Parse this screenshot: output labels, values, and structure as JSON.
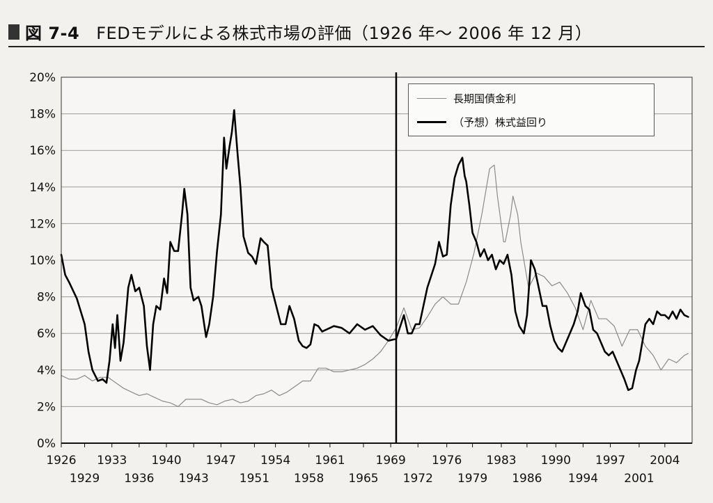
{
  "header": {
    "figure_number": "図 7-4",
    "title": "FEDモデルによる株式市場の評価（1926 年～ 2006 年 12 月）"
  },
  "legend": {
    "items": [
      {
        "label": "長期国債金利",
        "color": "#8a8a8a",
        "style": "thin"
      },
      {
        "label": "（予想）株式益回り",
        "color": "#000000",
        "style": "thick"
      }
    ]
  },
  "chart_data": {
    "type": "line",
    "title": "FEDモデルによる株式市場の評価（1926 年～ 2006 年 12 月）",
    "ylim": [
      0,
      20
    ],
    "xlim": [
      1926,
      2007
    ],
    "y_ticks": [
      "0%",
      "2%",
      "4%",
      "6%",
      "8%",
      "10%",
      "12%",
      "14%",
      "16%",
      "18%",
      "20%"
    ],
    "x_ticks_upper": [
      "1926",
      "1933",
      "1940",
      "1947",
      "1954",
      "1961",
      "1969",
      "1976",
      "1983",
      "1990",
      "1997",
      "2004"
    ],
    "x_ticks_lower": [
      "1929",
      "1936",
      "1943",
      "1951",
      "1958",
      "1965",
      "1972",
      "1979",
      "1986",
      "1994",
      "2001"
    ],
    "x_ticks_upper_values": [
      1926,
      1932.5,
      1939.5,
      1946.5,
      1953.5,
      1960.5,
      1968.3,
      1975.5,
      1982.5,
      1989.5,
      1996.5,
      2003.5
    ],
    "x_ticks_lower_values": [
      1929,
      1936,
      1943,
      1950.8,
      1957.8,
      1964.8,
      1971.8,
      1978.8,
      1985.8,
      1993,
      2000.2
    ],
    "vertical_marker_year": 1969,
    "grid": true,
    "legend_position": "top-right",
    "series": [
      {
        "name": "長期国債金利",
        "color": "#8a8a8a",
        "width": 1.2,
        "points": [
          [
            1926,
            3.7
          ],
          [
            1927,
            3.5
          ],
          [
            1928,
            3.5
          ],
          [
            1929,
            3.7
          ],
          [
            1930,
            3.4
          ],
          [
            1931,
            3.6
          ],
          [
            1932,
            3.6
          ],
          [
            1933,
            3.3
          ],
          [
            1934,
            3.0
          ],
          [
            1935,
            2.8
          ],
          [
            1936,
            2.6
          ],
          [
            1937,
            2.7
          ],
          [
            1938,
            2.5
          ],
          [
            1939,
            2.3
          ],
          [
            1940,
            2.2
          ],
          [
            1941,
            2.0
          ],
          [
            1942,
            2.4
          ],
          [
            1943,
            2.4
          ],
          [
            1944,
            2.4
          ],
          [
            1945,
            2.2
          ],
          [
            1946,
            2.1
          ],
          [
            1947,
            2.3
          ],
          [
            1948,
            2.4
          ],
          [
            1949,
            2.2
          ],
          [
            1950,
            2.3
          ],
          [
            1951,
            2.6
          ],
          [
            1952,
            2.7
          ],
          [
            1953,
            2.9
          ],
          [
            1954,
            2.6
          ],
          [
            1955,
            2.8
          ],
          [
            1956,
            3.1
          ],
          [
            1957,
            3.4
          ],
          [
            1958,
            3.4
          ],
          [
            1959,
            4.1
          ],
          [
            1960,
            4.1
          ],
          [
            1961,
            3.9
          ],
          [
            1962,
            3.9
          ],
          [
            1963,
            4.0
          ],
          [
            1964,
            4.1
          ],
          [
            1965,
            4.3
          ],
          [
            1966,
            4.6
          ],
          [
            1967,
            5.0
          ],
          [
            1968,
            5.6
          ],
          [
            1969,
            6.3
          ],
          [
            1970,
            7.4
          ],
          [
            1971,
            6.2
          ],
          [
            1972,
            6.3
          ],
          [
            1973,
            6.9
          ],
          [
            1974,
            7.6
          ],
          [
            1975,
            8.0
          ],
          [
            1976,
            7.6
          ],
          [
            1977,
            7.6
          ],
          [
            1978,
            8.8
          ],
          [
            1979,
            10.4
          ],
          [
            1980,
            12.5
          ],
          [
            1981,
            15.0
          ],
          [
            1981.6,
            15.2
          ],
          [
            1982,
            13.5
          ],
          [
            1982.8,
            11.0
          ],
          [
            1983,
            11.0
          ],
          [
            1983.7,
            12.5
          ],
          [
            1984,
            13.5
          ],
          [
            1984.6,
            12.5
          ],
          [
            1985,
            11.0
          ],
          [
            1986,
            8.5
          ],
          [
            1987,
            9.3
          ],
          [
            1988,
            9.1
          ],
          [
            1989,
            8.6
          ],
          [
            1990,
            8.8
          ],
          [
            1991,
            8.2
          ],
          [
            1992,
            7.4
          ],
          [
            1993,
            6.2
          ],
          [
            1994,
            7.8
          ],
          [
            1995,
            6.8
          ],
          [
            1996,
            6.8
          ],
          [
            1997,
            6.4
          ],
          [
            1998,
            5.3
          ],
          [
            1999,
            6.2
          ],
          [
            2000,
            6.2
          ],
          [
            2001,
            5.3
          ],
          [
            2002,
            4.8
          ],
          [
            2003,
            4.0
          ],
          [
            2004,
            4.6
          ],
          [
            2005,
            4.4
          ],
          [
            2006,
            4.8
          ],
          [
            2006.5,
            4.9
          ]
        ]
      },
      {
        "name": "（予想）株式益回り",
        "color": "#000000",
        "width": 2.6,
        "points": [
          [
            1926,
            10.3
          ],
          [
            1926.5,
            9.2
          ],
          [
            1927,
            8.8
          ],
          [
            1928,
            7.9
          ],
          [
            1929,
            6.5
          ],
          [
            1929.5,
            5.0
          ],
          [
            1930,
            4.0
          ],
          [
            1930.7,
            3.4
          ],
          [
            1931.3,
            3.5
          ],
          [
            1931.8,
            3.3
          ],
          [
            1932.2,
            4.5
          ],
          [
            1932.6,
            6.5
          ],
          [
            1932.9,
            5.2
          ],
          [
            1933.2,
            7.0
          ],
          [
            1933.6,
            4.5
          ],
          [
            1934,
            5.5
          ],
          [
            1934.6,
            8.5
          ],
          [
            1935,
            9.2
          ],
          [
            1935.5,
            8.3
          ],
          [
            1936,
            8.5
          ],
          [
            1936.6,
            7.5
          ],
          [
            1937,
            5.3
          ],
          [
            1937.4,
            4.0
          ],
          [
            1937.8,
            6.5
          ],
          [
            1938.2,
            7.5
          ],
          [
            1938.7,
            7.3
          ],
          [
            1939.2,
            9.0
          ],
          [
            1939.6,
            8.2
          ],
          [
            1940,
            11.0
          ],
          [
            1940.5,
            10.5
          ],
          [
            1941,
            10.5
          ],
          [
            1941.5,
            12.5
          ],
          [
            1941.8,
            13.9
          ],
          [
            1942.2,
            12.5
          ],
          [
            1942.6,
            8.5
          ],
          [
            1943,
            7.8
          ],
          [
            1943.6,
            8.0
          ],
          [
            1944,
            7.5
          ],
          [
            1944.6,
            5.8
          ],
          [
            1945,
            6.5
          ],
          [
            1945.5,
            8.0
          ],
          [
            1946,
            10.5
          ],
          [
            1946.5,
            12.5
          ],
          [
            1946.9,
            16.7
          ],
          [
            1947.2,
            15.0
          ],
          [
            1947.6,
            16.2
          ],
          [
            1947.9,
            17.0
          ],
          [
            1948.2,
            18.2
          ],
          [
            1948.6,
            16.0
          ],
          [
            1949,
            14.0
          ],
          [
            1949.4,
            11.3
          ],
          [
            1950,
            10.4
          ],
          [
            1950.5,
            10.2
          ],
          [
            1951,
            9.8
          ],
          [
            1951.6,
            11.2
          ],
          [
            1952,
            11.0
          ],
          [
            1952.5,
            10.8
          ],
          [
            1953,
            8.5
          ],
          [
            1953.6,
            7.5
          ],
          [
            1954.2,
            6.5
          ],
          [
            1954.8,
            6.5
          ],
          [
            1955.3,
            7.5
          ],
          [
            1955.9,
            6.8
          ],
          [
            1956.5,
            5.6
          ],
          [
            1957,
            5.3
          ],
          [
            1957.5,
            5.2
          ],
          [
            1958,
            5.4
          ],
          [
            1958.5,
            6.5
          ],
          [
            1959,
            6.4
          ],
          [
            1959.5,
            6.1
          ],
          [
            1960,
            6.2
          ],
          [
            1961,
            6.4
          ],
          [
            1962,
            6.3
          ],
          [
            1963,
            6.0
          ],
          [
            1964,
            6.5
          ],
          [
            1965,
            6.2
          ],
          [
            1966,
            6.4
          ],
          [
            1967,
            5.9
          ],
          [
            1968,
            5.6
          ],
          [
            1969,
            5.7
          ],
          [
            1970,
            7.0
          ],
          [
            1970.5,
            6.0
          ],
          [
            1971,
            6.0
          ],
          [
            1971.5,
            6.5
          ],
          [
            1972,
            6.5
          ],
          [
            1973,
            8.5
          ],
          [
            1974,
            9.8
          ],
          [
            1974.5,
            11.0
          ],
          [
            1975,
            10.2
          ],
          [
            1975.5,
            10.3
          ],
          [
            1976,
            13.0
          ],
          [
            1976.5,
            14.5
          ],
          [
            1977,
            15.2
          ],
          [
            1977.5,
            15.6
          ],
          [
            1977.8,
            14.6
          ],
          [
            1978,
            14.3
          ],
          [
            1978.4,
            13.0
          ],
          [
            1978.8,
            11.5
          ],
          [
            1979.3,
            11.0
          ],
          [
            1979.8,
            10.2
          ],
          [
            1980.3,
            10.6
          ],
          [
            1980.8,
            10.0
          ],
          [
            1981.3,
            10.3
          ],
          [
            1981.8,
            9.5
          ],
          [
            1982.3,
            10.0
          ],
          [
            1982.8,
            9.8
          ],
          [
            1983.3,
            10.3
          ],
          [
            1983.8,
            9.2
          ],
          [
            1984.3,
            7.2
          ],
          [
            1984.8,
            6.4
          ],
          [
            1985.4,
            6.0
          ],
          [
            1985.8,
            7.0
          ],
          [
            1986.3,
            10.0
          ],
          [
            1986.8,
            9.5
          ],
          [
            1987.3,
            8.5
          ],
          [
            1987.8,
            7.5
          ],
          [
            1988.3,
            7.5
          ],
          [
            1988.8,
            6.4
          ],
          [
            1989.3,
            5.6
          ],
          [
            1989.8,
            5.2
          ],
          [
            1990.3,
            5.0
          ],
          [
            1990.8,
            5.5
          ],
          [
            1991.3,
            6.0
          ],
          [
            1991.8,
            6.5
          ],
          [
            1992.3,
            7.2
          ],
          [
            1992.7,
            8.2
          ],
          [
            1993.3,
            7.5
          ],
          [
            1993.8,
            7.3
          ],
          [
            1994.3,
            6.2
          ],
          [
            1994.8,
            6.0
          ],
          [
            1995.3,
            5.5
          ],
          [
            1995.8,
            5.0
          ],
          [
            1996.3,
            4.8
          ],
          [
            1996.8,
            5.0
          ],
          [
            1997.3,
            4.5
          ],
          [
            1997.8,
            4.0
          ],
          [
            1998.3,
            3.5
          ],
          [
            1998.8,
            2.9
          ],
          [
            1999.3,
            3.0
          ],
          [
            1999.8,
            4.0
          ],
          [
            2000.2,
            4.5
          ],
          [
            2000.6,
            5.5
          ],
          [
            2001,
            6.5
          ],
          [
            2001.5,
            6.8
          ],
          [
            2002,
            6.5
          ],
          [
            2002.5,
            7.2
          ],
          [
            2003,
            7.0
          ],
          [
            2003.5,
            7.0
          ],
          [
            2004,
            6.8
          ],
          [
            2004.5,
            7.2
          ],
          [
            2005,
            6.8
          ],
          [
            2005.5,
            7.3
          ],
          [
            2006,
            7.0
          ],
          [
            2006.5,
            6.9
          ]
        ]
      }
    ]
  }
}
